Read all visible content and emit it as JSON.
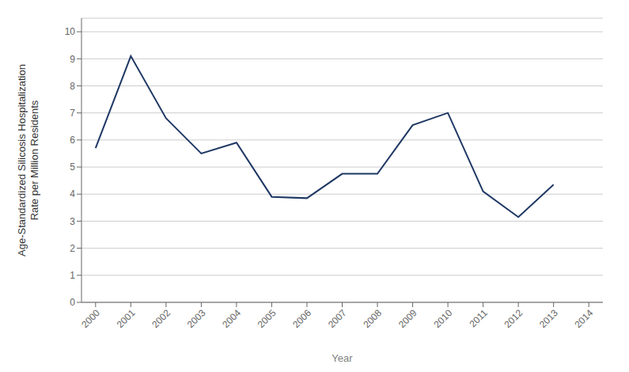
{
  "chart_data": {
    "type": "line",
    "x": [
      2000,
      2001,
      2002,
      2003,
      2004,
      2005,
      2006,
      2007,
      2008,
      2009,
      2010,
      2011,
      2012,
      2013,
      2014
    ],
    "values": [
      5.7,
      9.1,
      6.8,
      5.5,
      5.9,
      3.9,
      3.85,
      4.75,
      4.75,
      6.55,
      7.0,
      4.1,
      3.15,
      4.35,
      null
    ],
    "color": "#1F3864",
    "xlabel": "Year",
    "ylabel": "Age-Standardized Silicosis Hospitalization\nRate per Million Residents",
    "xlim": [
      1999.6,
      2014.4
    ],
    "xticks": [
      2000,
      2001,
      2002,
      2003,
      2004,
      2005,
      2006,
      2007,
      2008,
      2009,
      2010,
      2011,
      2012,
      2013,
      2014
    ],
    "ylim": [
      0,
      10.5
    ],
    "yticks": [
      0,
      1,
      2,
      3,
      4,
      5,
      6,
      7,
      8,
      9,
      10
    ],
    "grid": true
  }
}
